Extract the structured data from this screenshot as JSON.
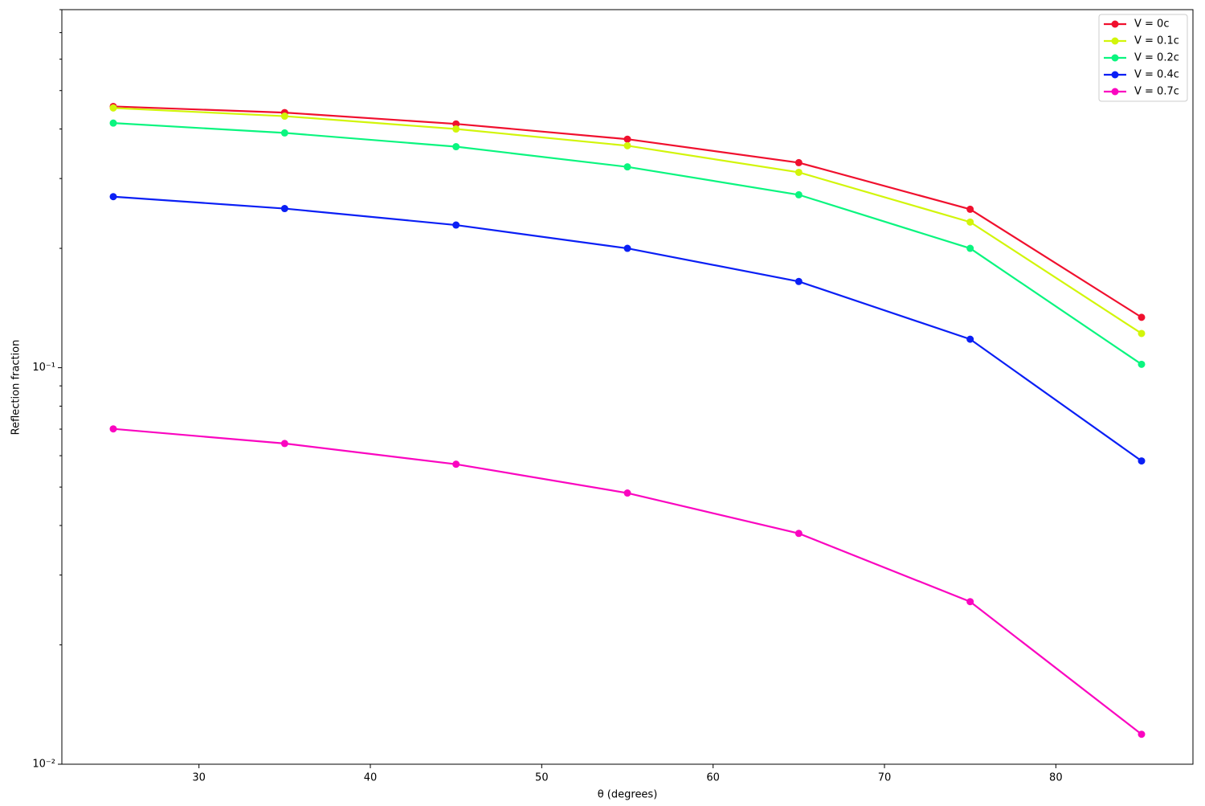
{
  "chart_data": {
    "type": "line",
    "xlabel": "θ (degrees)",
    "ylabel": "Reflection fraction",
    "x": [
      25,
      35,
      45,
      55,
      65,
      75,
      85
    ],
    "series": [
      {
        "name": "V = 0c",
        "color": "#f0102e",
        "values": [
          0.456,
          0.44,
          0.412,
          0.377,
          0.329,
          0.251,
          0.134
        ]
      },
      {
        "name": "V = 0.1c",
        "color": "#d2f50a",
        "values": [
          0.452,
          0.431,
          0.4,
          0.363,
          0.311,
          0.233,
          0.122
        ]
      },
      {
        "name": "V = 0.2c",
        "color": "#0af57f",
        "values": [
          0.414,
          0.391,
          0.361,
          0.321,
          0.273,
          0.2,
          0.102
        ]
      },
      {
        "name": "V = 0.4c",
        "color": "#0a1ff5",
        "values": [
          0.27,
          0.252,
          0.229,
          0.2,
          0.165,
          0.118,
          0.0582
        ]
      },
      {
        "name": "V = 0.7c",
        "color": "#fa05c0",
        "values": [
          0.0701,
          0.0644,
          0.0571,
          0.0483,
          0.0382,
          0.0257,
          0.0119
        ]
      }
    ],
    "xlim": [
      22,
      88
    ],
    "xticks": [
      30,
      40,
      50,
      60,
      70,
      80
    ],
    "ylim": [
      0.01,
      0.8
    ],
    "log_y": true,
    "yticks": [
      {
        "value": 0.01,
        "label": "10⁻²"
      },
      {
        "value": 0.1,
        "label": "10⁻¹"
      }
    ],
    "yminorticks": [
      0.02,
      0.03,
      0.04,
      0.05,
      0.06,
      0.07,
      0.08,
      0.09,
      0.2,
      0.3,
      0.4,
      0.5,
      0.6,
      0.7,
      0.8
    ],
    "grid": false,
    "legend": "upper right"
  }
}
